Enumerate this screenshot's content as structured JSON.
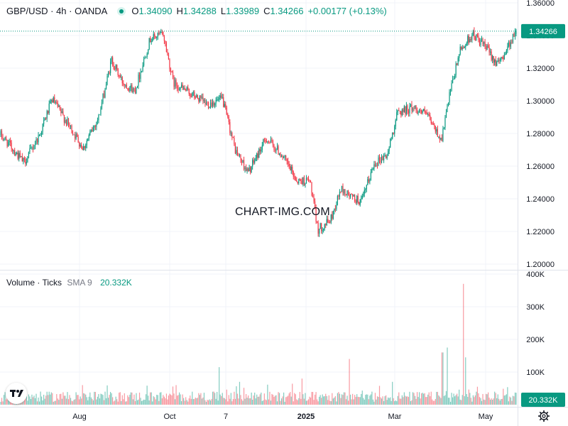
{
  "legend": {
    "symbol": "GBP/USD · 4h · OANDA",
    "open_label": "O",
    "open": "1.34090",
    "high_label": "H",
    "high": "1.34288",
    "low_label": "L",
    "low": "1.33989",
    "close_label": "C",
    "close": "1.34266",
    "change": "+0.00177 (+0.13%)"
  },
  "volume_legend": {
    "name": "Volume · Ticks",
    "sma_label": "SMA 9",
    "sma_value": "20.332K"
  },
  "watermark": "CHART-IMG.COM",
  "colors": {
    "up": "#089981",
    "down": "#f23645",
    "grid": "#f0f3fa",
    "text": "#131722"
  },
  "icons": {
    "logo": "tradingview-logo-icon",
    "settings": "gear-icon"
  },
  "chart_data": {
    "type": "candlestick",
    "price_axis": {
      "ticks": [
        "1.36000",
        "1.34000",
        "1.32000",
        "1.30000",
        "1.28000",
        "1.26000",
        "1.24000",
        "1.22000",
        "1.20000"
      ],
      "ylim": [
        1.2,
        1.36
      ],
      "last_price": "1.34266"
    },
    "volume_axis": {
      "ticks": [
        "400K",
        "300K",
        "200K",
        "100K"
      ],
      "last_value": "20.332K",
      "ylim": [
        0,
        400000
      ]
    },
    "time_axis": {
      "labels": [
        "Aug",
        "Oct",
        "7",
        "2025",
        "Mar",
        "May"
      ]
    },
    "price_path": [
      {
        "x": 0.0,
        "y": 1.279
      },
      {
        "x": 0.02,
        "y": 1.272
      },
      {
        "x": 0.045,
        "y": 1.262
      },
      {
        "x": 0.075,
        "y": 1.279
      },
      {
        "x": 0.1,
        "y": 1.301
      },
      {
        "x": 0.13,
        "y": 1.286
      },
      {
        "x": 0.16,
        "y": 1.271
      },
      {
        "x": 0.19,
        "y": 1.29
      },
      {
        "x": 0.215,
        "y": 1.325
      },
      {
        "x": 0.235,
        "y": 1.312
      },
      {
        "x": 0.26,
        "y": 1.306
      },
      {
        "x": 0.29,
        "y": 1.338
      },
      {
        "x": 0.315,
        "y": 1.341
      },
      {
        "x": 0.335,
        "y": 1.311
      },
      {
        "x": 0.365,
        "y": 1.305
      },
      {
        "x": 0.4,
        "y": 1.298
      },
      {
        "x": 0.43,
        "y": 1.301
      },
      {
        "x": 0.455,
        "y": 1.27
      },
      {
        "x": 0.48,
        "y": 1.256
      },
      {
        "x": 0.515,
        "y": 1.277
      },
      {
        "x": 0.545,
        "y": 1.267
      },
      {
        "x": 0.575,
        "y": 1.251
      },
      {
        "x": 0.6,
        "y": 1.251
      },
      {
        "x": 0.615,
        "y": 1.221
      },
      {
        "x": 0.64,
        "y": 1.227
      },
      {
        "x": 0.66,
        "y": 1.246
      },
      {
        "x": 0.68,
        "y": 1.241
      },
      {
        "x": 0.7,
        "y": 1.238
      },
      {
        "x": 0.725,
        "y": 1.262
      },
      {
        "x": 0.75,
        "y": 1.267
      },
      {
        "x": 0.77,
        "y": 1.293
      },
      {
        "x": 0.8,
        "y": 1.296
      },
      {
        "x": 0.825,
        "y": 1.292
      },
      {
        "x": 0.855,
        "y": 1.276
      },
      {
        "x": 0.87,
        "y": 1.302
      },
      {
        "x": 0.89,
        "y": 1.33
      },
      {
        "x": 0.915,
        "y": 1.341
      },
      {
        "x": 0.94,
        "y": 1.333
      },
      {
        "x": 0.965,
        "y": 1.322
      },
      {
        "x": 0.985,
        "y": 1.334
      },
      {
        "x": 1.0,
        "y": 1.3427
      }
    ],
    "volume_baseline": 35000,
    "volume_spikes": [
      {
        "x": 0.159,
        "v": 60000
      },
      {
        "x": 0.424,
        "v": 115000
      },
      {
        "x": 0.463,
        "v": 70000
      },
      {
        "x": 0.585,
        "v": 80000
      },
      {
        "x": 0.676,
        "v": 140000
      },
      {
        "x": 0.76,
        "v": 70000
      },
      {
        "x": 0.857,
        "v": 160000
      },
      {
        "x": 0.866,
        "v": 175000
      },
      {
        "x": 0.898,
        "v": 370000
      },
      {
        "x": 0.902,
        "v": 145000
      }
    ]
  }
}
